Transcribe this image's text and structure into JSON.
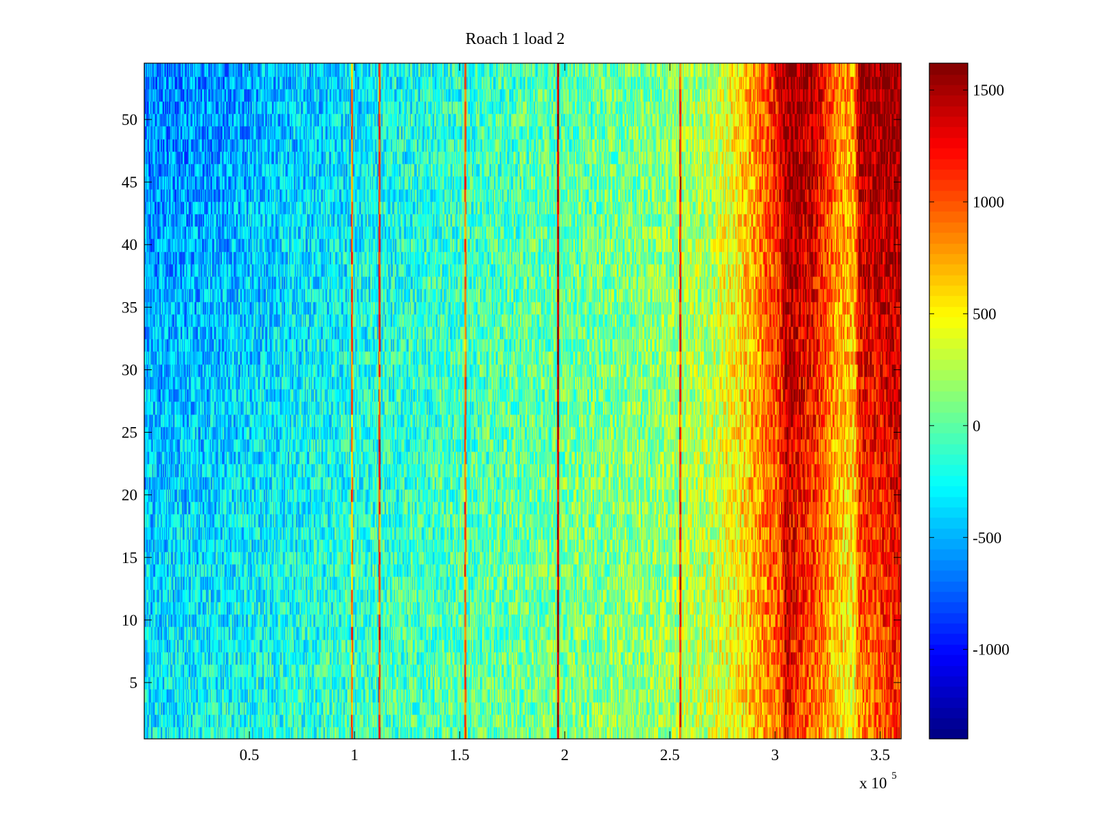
{
  "chart_data": {
    "type": "heatmap",
    "title": "Roach 1 load 2",
    "xlabel": "",
    "ylabel": "",
    "x_multiplier_label": "x 10",
    "x_multiplier_exponent": "5",
    "xlim": [
      0.0,
      3.6
    ],
    "ylim": [
      0.5,
      54.5
    ],
    "xticks": [
      0.5,
      1.0,
      1.5,
      2.0,
      2.5,
      3.0,
      3.5
    ],
    "xtick_labels": [
      "0.5",
      "1",
      "1.5",
      "2",
      "2.5",
      "3",
      "3.5"
    ],
    "yticks": [
      5,
      10,
      15,
      20,
      25,
      30,
      35,
      40,
      45,
      50
    ],
    "ytick_labels": [
      "5",
      "10",
      "15",
      "20",
      "25",
      "30",
      "35",
      "40",
      "45",
      "50"
    ],
    "n_rows": 54,
    "n_columns": 720,
    "colormap": "jet",
    "clim": [
      -1400,
      1620
    ],
    "colorbar_ticks": [
      -1000,
      -500,
      0,
      500,
      1000,
      1500
    ],
    "colorbar_tick_labels": [
      "-1000",
      "-500",
      "0",
      "500",
      "1000",
      "1500"
    ],
    "column_profile": {
      "x": [
        0.0,
        0.3,
        0.6,
        0.9,
        1.2,
        1.5,
        1.8,
        2.1,
        2.4,
        2.7,
        2.85,
        2.95,
        3.03,
        3.05,
        3.1,
        3.2,
        3.3,
        3.38,
        3.4,
        3.45,
        3.6
      ],
      "value_top": [
        -650,
        -600,
        -480,
        -380,
        -250,
        -150,
        -50,
        0,
        80,
        250,
        600,
        1000,
        1300,
        1550,
        1600,
        1400,
        900,
        800,
        1550,
        1600,
        1620
      ],
      "value_bottom": [
        -300,
        -250,
        -180,
        -100,
        -50,
        0,
        60,
        120,
        180,
        320,
        550,
        800,
        900,
        1300,
        1100,
        900,
        550,
        450,
        850,
        900,
        1100
      ]
    },
    "stripes": [
      {
        "x": 0.99,
        "value": 900
      },
      {
        "x": 1.12,
        "value": 1100
      },
      {
        "x": 1.53,
        "value": 1000
      },
      {
        "x": 1.97,
        "value": 1500
      },
      {
        "x": 2.55,
        "value": 1250
      }
    ]
  }
}
